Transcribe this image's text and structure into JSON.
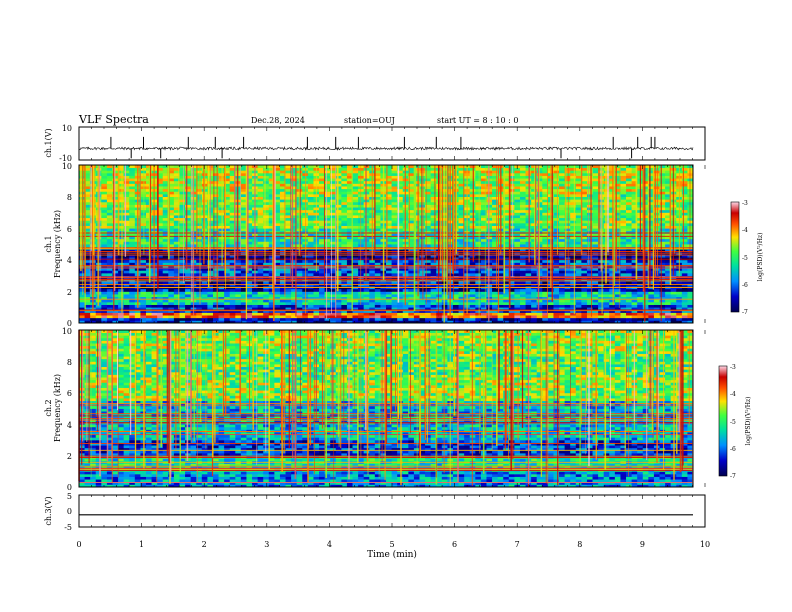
{
  "header": {
    "title": "VLF Spectra",
    "date": "Dec.28, 2024",
    "station": "station=OUJ",
    "start": "start  UT  =  8 : 10 : 0"
  },
  "colorbar": {
    "label": "log(PSD)(V²/Hz)",
    "ticks": [
      "-3",
      "-4",
      "-5",
      "-6",
      "-7"
    ],
    "colors": [
      "#000050",
      "#0000c8",
      "#0090ff",
      "#00e0a0",
      "#40ff40",
      "#ffe000",
      "#ff5000",
      "#c80000",
      "#ffd8e8"
    ]
  },
  "chart_data": [
    {
      "type": "line",
      "panel": "ch1-waveform",
      "ylabel": "ch.1(V)",
      "ylim": [
        -10,
        10
      ],
      "yticks": [
        "10",
        "-10"
      ],
      "xlim": [
        0,
        10
      ],
      "baseline": -3,
      "noise_amplitude": 0.8,
      "spike_times": [
        0.52,
        0.85,
        1.05,
        1.33,
        1.78,
        2.22,
        2.33,
        2.68,
        3.72,
        4.18,
        4.55,
        5.3,
        5.82,
        6.22,
        7.85,
        8.7,
        9.0,
        9.1,
        9.32,
        9.38
      ]
    },
    {
      "type": "heatmap",
      "panel": "ch1-spectrogram",
      "ylabel": "ch.1\nFrequency (kHz)",
      "ylim": [
        0,
        10
      ],
      "yticks": [
        "0",
        "2",
        "4",
        "6",
        "8",
        "10"
      ],
      "xlim": [
        0,
        10
      ],
      "zlim": [
        -7,
        -3
      ],
      "zlabel": "log(PSD)(V²/Hz)",
      "bands": [
        {
          "from": 0.0,
          "to": 0.4,
          "level": -6.4
        },
        {
          "from": 0.4,
          "to": 0.6,
          "level": -3.8
        },
        {
          "from": 0.6,
          "to": 1.2,
          "level": -6.2
        },
        {
          "from": 1.2,
          "to": 2.0,
          "level": -5.4
        },
        {
          "from": 2.0,
          "to": 3.0,
          "level": -6.5
        },
        {
          "from": 3.0,
          "to": 4.0,
          "level": -6.1
        },
        {
          "from": 4.0,
          "to": 4.6,
          "level": -6.7
        },
        {
          "from": 4.6,
          "to": 6.0,
          "level": -5.2
        },
        {
          "from": 6.0,
          "to": 8.2,
          "level": -4.8
        },
        {
          "from": 8.2,
          "to": 10.0,
          "level": -4.6
        }
      ]
    },
    {
      "type": "heatmap",
      "panel": "ch2-spectrogram",
      "ylabel": "ch.2\nFrequency (kHz)",
      "ylim": [
        0,
        10
      ],
      "yticks": [
        "0",
        "2",
        "4",
        "6",
        "8",
        "10"
      ],
      "xlim": [
        0,
        10
      ],
      "zlim": [
        -7,
        -3
      ],
      "zlabel": "log(PSD)(V²/Hz)",
      "bands": [
        {
          "from": 0.0,
          "to": 1.0,
          "level": -5.8
        },
        {
          "from": 1.0,
          "to": 2.0,
          "level": -5.3
        },
        {
          "from": 2.0,
          "to": 3.0,
          "level": -6.2
        },
        {
          "from": 3.0,
          "to": 4.0,
          "level": -5.6
        },
        {
          "from": 4.0,
          "to": 5.5,
          "level": -5.6
        },
        {
          "from": 5.5,
          "to": 7.0,
          "level": -4.7
        },
        {
          "from": 7.0,
          "to": 8.5,
          "level": -4.9
        },
        {
          "from": 8.5,
          "to": 10.0,
          "level": -4.7
        }
      ]
    },
    {
      "type": "line",
      "panel": "ch3-waveform",
      "ylabel": "ch.3(V)",
      "ylim": [
        -5,
        5
      ],
      "yticks": [
        "5",
        "0",
        "-5"
      ],
      "xlim": [
        0,
        10
      ],
      "value": -1.2
    }
  ],
  "xaxis": {
    "label": "Time (min)",
    "ticks": [
      "0",
      "1",
      "2",
      "3",
      "4",
      "5",
      "6",
      "7",
      "8",
      "9",
      "10"
    ]
  }
}
